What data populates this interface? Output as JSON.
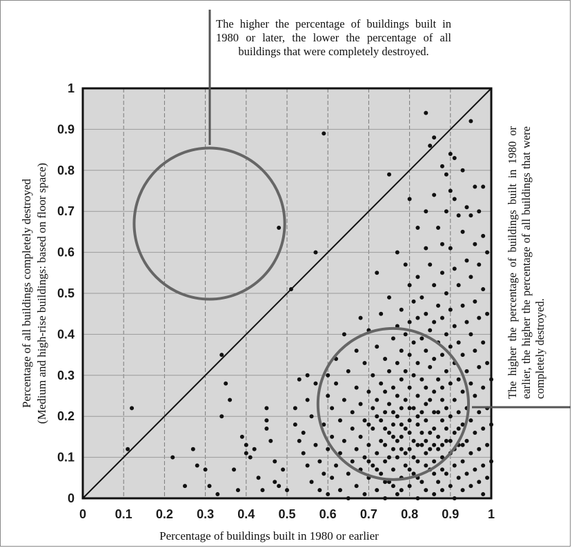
{
  "chart_data": {
    "type": "scatter",
    "xlabel": "Percentage of buildings built in 1980 or earlier",
    "ylabel_line1": "Percentage of all buildings completely destroyed",
    "ylabel_line2": "(Medium and high-rise buildings: based on floor space)",
    "xlim": [
      0,
      1
    ],
    "ylim": [
      0,
      1
    ],
    "x_ticks": [
      "0",
      "0.1",
      "0.2",
      "0.3",
      "0.4",
      "0.5",
      "0.6",
      "0.7",
      "0.8",
      "0.9",
      "1"
    ],
    "y_ticks": [
      "0",
      "0.1",
      "0.2",
      "0.3",
      "0.4",
      "0.5",
      "0.6",
      "0.7",
      "0.8",
      "0.9",
      "1"
    ],
    "grid": true,
    "reference_line": {
      "from": [
        0,
        0
      ],
      "to": [
        1,
        1
      ]
    },
    "annotation_top": "The higher the percentage of buildings built in 1980 or later, the lower the percentage of all buildings that were completely destroyed.",
    "annotation_right": "The higher the percentage of buildings built in 1980 or earlier, the higher the percentage of all buildings that were completely destroyed.",
    "highlight_circles": [
      {
        "cx": 0.31,
        "cy": 0.67,
        "r": 0.19,
        "meaning": "upper-left region"
      },
      {
        "cx": 0.76,
        "cy": 0.23,
        "r": 0.19,
        "meaning": "lower-right region"
      }
    ],
    "points": [
      [
        0.12,
        0.22
      ],
      [
        0.11,
        0.12
      ],
      [
        0.22,
        0.1
      ],
      [
        0.25,
        0.03
      ],
      [
        0.27,
        0.12
      ],
      [
        0.28,
        0.08
      ],
      [
        0.3,
        0.07
      ],
      [
        0.31,
        0.03
      ],
      [
        0.33,
        0.01
      ],
      [
        0.34,
        0.35
      ],
      [
        0.34,
        0.2
      ],
      [
        0.35,
        0.28
      ],
      [
        0.36,
        0.24
      ],
      [
        0.37,
        0.07
      ],
      [
        0.38,
        0.02
      ],
      [
        0.39,
        0.15
      ],
      [
        0.4,
        0.13
      ],
      [
        0.4,
        0.11
      ],
      [
        0.41,
        0.1
      ],
      [
        0.42,
        0.12
      ],
      [
        0.43,
        0.05
      ],
      [
        0.44,
        0.02
      ],
      [
        0.45,
        0.22
      ],
      [
        0.45,
        0.19
      ],
      [
        0.45,
        0.17
      ],
      [
        0.46,
        0.14
      ],
      [
        0.47,
        0.09
      ],
      [
        0.47,
        0.04
      ],
      [
        0.48,
        0.66
      ],
      [
        0.48,
        0.03
      ],
      [
        0.49,
        0.07
      ],
      [
        0.5,
        0.02
      ],
      [
        0.51,
        0.51
      ],
      [
        0.52,
        0.22
      ],
      [
        0.52,
        0.18
      ],
      [
        0.53,
        0.29
      ],
      [
        0.53,
        0.14
      ],
      [
        0.54,
        0.16
      ],
      [
        0.54,
        0.11
      ],
      [
        0.55,
        0.3
      ],
      [
        0.55,
        0.24
      ],
      [
        0.55,
        0.08
      ],
      [
        0.56,
        0.2
      ],
      [
        0.56,
        0.04
      ],
      [
        0.57,
        0.6
      ],
      [
        0.57,
        0.28
      ],
      [
        0.57,
        0.13
      ],
      [
        0.58,
        0.09
      ],
      [
        0.58,
        0.02
      ],
      [
        0.59,
        0.89
      ],
      [
        0.59,
        0.18
      ],
      [
        0.59,
        0.06
      ],
      [
        0.6,
        0.3
      ],
      [
        0.6,
        0.25
      ],
      [
        0.6,
        0.12
      ],
      [
        0.6,
        0.01
      ],
      [
        0.61,
        0.22
      ],
      [
        0.61,
        0.15
      ],
      [
        0.61,
        0.05
      ],
      [
        0.62,
        0.34
      ],
      [
        0.62,
        0.28
      ],
      [
        0.62,
        0.08
      ],
      [
        0.63,
        0.19
      ],
      [
        0.63,
        0.11
      ],
      [
        0.63,
        0.02
      ],
      [
        0.64,
        0.4
      ],
      [
        0.64,
        0.24
      ],
      [
        0.64,
        0.14
      ],
      [
        0.65,
        0.31
      ],
      [
        0.65,
        0.06
      ],
      [
        0.65,
        0.0
      ],
      [
        0.66,
        0.21
      ],
      [
        0.66,
        0.17
      ],
      [
        0.66,
        0.09
      ],
      [
        0.67,
        0.36
      ],
      [
        0.67,
        0.27
      ],
      [
        0.67,
        0.12
      ],
      [
        0.67,
        0.03
      ],
      [
        0.68,
        0.44
      ],
      [
        0.68,
        0.23
      ],
      [
        0.68,
        0.15
      ],
      [
        0.68,
        0.07
      ],
      [
        0.69,
        0.33
      ],
      [
        0.69,
        0.19
      ],
      [
        0.69,
        0.1
      ],
      [
        0.69,
        0.01
      ],
      [
        0.7,
        0.41
      ],
      [
        0.7,
        0.26
      ],
      [
        0.7,
        0.13
      ],
      [
        0.7,
        0.05
      ],
      [
        0.71,
        0.3
      ],
      [
        0.71,
        0.22
      ],
      [
        0.71,
        0.17
      ],
      [
        0.71,
        0.08
      ],
      [
        0.72,
        0.55
      ],
      [
        0.72,
        0.37
      ],
      [
        0.72,
        0.24
      ],
      [
        0.72,
        0.11
      ],
      [
        0.72,
        0.02
      ],
      [
        0.73,
        0.45
      ],
      [
        0.73,
        0.28
      ],
      [
        0.73,
        0.19
      ],
      [
        0.73,
        0.14
      ],
      [
        0.73,
        0.06
      ],
      [
        0.74,
        0.34
      ],
      [
        0.74,
        0.26
      ],
      [
        0.74,
        0.21
      ],
      [
        0.74,
        0.09
      ],
      [
        0.74,
        0.0
      ],
      [
        0.75,
        0.79
      ],
      [
        0.75,
        0.49
      ],
      [
        0.75,
        0.31
      ],
      [
        0.75,
        0.23
      ],
      [
        0.75,
        0.16
      ],
      [
        0.75,
        0.04
      ],
      [
        0.76,
        0.39
      ],
      [
        0.76,
        0.27
      ],
      [
        0.76,
        0.18
      ],
      [
        0.76,
        0.12
      ],
      [
        0.76,
        0.07
      ],
      [
        0.77,
        0.6
      ],
      [
        0.77,
        0.42
      ],
      [
        0.77,
        0.33
      ],
      [
        0.77,
        0.25
      ],
      [
        0.77,
        0.2
      ],
      [
        0.77,
        0.1
      ],
      [
        0.77,
        0.01
      ],
      [
        0.78,
        0.46
      ],
      [
        0.78,
        0.36
      ],
      [
        0.78,
        0.29
      ],
      [
        0.78,
        0.22
      ],
      [
        0.78,
        0.15
      ],
      [
        0.78,
        0.05
      ],
      [
        0.79,
        0.57
      ],
      [
        0.79,
        0.4
      ],
      [
        0.79,
        0.31
      ],
      [
        0.79,
        0.24
      ],
      [
        0.79,
        0.17
      ],
      [
        0.79,
        0.08
      ],
      [
        0.8,
        0.73
      ],
      [
        0.8,
        0.52
      ],
      [
        0.8,
        0.43
      ],
      [
        0.8,
        0.35
      ],
      [
        0.8,
        0.27
      ],
      [
        0.8,
        0.19
      ],
      [
        0.8,
        0.12
      ],
      [
        0.8,
        0.03
      ],
      [
        0.81,
        0.48
      ],
      [
        0.81,
        0.38
      ],
      [
        0.81,
        0.3
      ],
      [
        0.81,
        0.22
      ],
      [
        0.81,
        0.14
      ],
      [
        0.81,
        0.06
      ],
      [
        0.82,
        0.66
      ],
      [
        0.82,
        0.54
      ],
      [
        0.82,
        0.44
      ],
      [
        0.82,
        0.33
      ],
      [
        0.82,
        0.25
      ],
      [
        0.82,
        0.18
      ],
      [
        0.82,
        0.09
      ],
      [
        0.82,
        0.0
      ],
      [
        0.83,
        0.49
      ],
      [
        0.83,
        0.39
      ],
      [
        0.83,
        0.29
      ],
      [
        0.83,
        0.21
      ],
      [
        0.83,
        0.13
      ],
      [
        0.83,
        0.04
      ],
      [
        0.84,
        0.94
      ],
      [
        0.84,
        0.7
      ],
      [
        0.84,
        0.61
      ],
      [
        0.84,
        0.45
      ],
      [
        0.84,
        0.36
      ],
      [
        0.84,
        0.27
      ],
      [
        0.84,
        0.19
      ],
      [
        0.84,
        0.11
      ],
      [
        0.84,
        0.02
      ],
      [
        0.85,
        0.86
      ],
      [
        0.85,
        0.57
      ],
      [
        0.85,
        0.41
      ],
      [
        0.85,
        0.32
      ],
      [
        0.85,
        0.24
      ],
      [
        0.85,
        0.16
      ],
      [
        0.85,
        0.07
      ],
      [
        0.86,
        0.88
      ],
      [
        0.86,
        0.74
      ],
      [
        0.86,
        0.52
      ],
      [
        0.86,
        0.43
      ],
      [
        0.86,
        0.34
      ],
      [
        0.86,
        0.26
      ],
      [
        0.86,
        0.17
      ],
      [
        0.86,
        0.09
      ],
      [
        0.86,
        0.01
      ],
      [
        0.87,
        0.66
      ],
      [
        0.87,
        0.47
      ],
      [
        0.87,
        0.38
      ],
      [
        0.87,
        0.29
      ],
      [
        0.87,
        0.21
      ],
      [
        0.87,
        0.12
      ],
      [
        0.87,
        0.04
      ],
      [
        0.88,
        0.81
      ],
      [
        0.88,
        0.62
      ],
      [
        0.88,
        0.55
      ],
      [
        0.88,
        0.44
      ],
      [
        0.88,
        0.35
      ],
      [
        0.88,
        0.27
      ],
      [
        0.88,
        0.19
      ],
      [
        0.88,
        0.1
      ],
      [
        0.88,
        0.02
      ],
      [
        0.89,
        0.79
      ],
      [
        0.89,
        0.7
      ],
      [
        0.89,
        0.5
      ],
      [
        0.89,
        0.4
      ],
      [
        0.89,
        0.31
      ],
      [
        0.89,
        0.22
      ],
      [
        0.89,
        0.14
      ],
      [
        0.89,
        0.06
      ],
      [
        0.9,
        0.84
      ],
      [
        0.9,
        0.75
      ],
      [
        0.9,
        0.61
      ],
      [
        0.9,
        0.46
      ],
      [
        0.9,
        0.37
      ],
      [
        0.9,
        0.28
      ],
      [
        0.9,
        0.2
      ],
      [
        0.9,
        0.11
      ],
      [
        0.9,
        0.03
      ],
      [
        0.91,
        0.83
      ],
      [
        0.91,
        0.73
      ],
      [
        0.91,
        0.56
      ],
      [
        0.91,
        0.42
      ],
      [
        0.91,
        0.33
      ],
      [
        0.91,
        0.24
      ],
      [
        0.91,
        0.16
      ],
      [
        0.91,
        0.08
      ],
      [
        0.91,
        0.0
      ],
      [
        0.92,
        0.69
      ],
      [
        0.92,
        0.52
      ],
      [
        0.92,
        0.38
      ],
      [
        0.92,
        0.29
      ],
      [
        0.92,
        0.21
      ],
      [
        0.92,
        0.13
      ],
      [
        0.92,
        0.05
      ],
      [
        0.93,
        0.8
      ],
      [
        0.93,
        0.65
      ],
      [
        0.93,
        0.47
      ],
      [
        0.93,
        0.35
      ],
      [
        0.93,
        0.26
      ],
      [
        0.93,
        0.18
      ],
      [
        0.93,
        0.09
      ],
      [
        0.93,
        0.02
      ],
      [
        0.94,
        0.71
      ],
      [
        0.94,
        0.58
      ],
      [
        0.94,
        0.43
      ],
      [
        0.94,
        0.31
      ],
      [
        0.94,
        0.22
      ],
      [
        0.94,
        0.14
      ],
      [
        0.94,
        0.06
      ],
      [
        0.95,
        0.92
      ],
      [
        0.95,
        0.69
      ],
      [
        0.95,
        0.54
      ],
      [
        0.95,
        0.4
      ],
      [
        0.95,
        0.28
      ],
      [
        0.95,
        0.19
      ],
      [
        0.95,
        0.11
      ],
      [
        0.95,
        0.03
      ],
      [
        0.96,
        0.76
      ],
      [
        0.96,
        0.62
      ],
      [
        0.96,
        0.48
      ],
      [
        0.96,
        0.36
      ],
      [
        0.96,
        0.25
      ],
      [
        0.96,
        0.16
      ],
      [
        0.96,
        0.07
      ],
      [
        0.97,
        0.7
      ],
      [
        0.97,
        0.57
      ],
      [
        0.97,
        0.44
      ],
      [
        0.97,
        0.32
      ],
      [
        0.97,
        0.21
      ],
      [
        0.97,
        0.12
      ],
      [
        0.97,
        0.04
      ],
      [
        0.98,
        0.76
      ],
      [
        0.98,
        0.64
      ],
      [
        0.98,
        0.51
      ],
      [
        0.98,
        0.38
      ],
      [
        0.98,
        0.27
      ],
      [
        0.98,
        0.17
      ],
      [
        0.98,
        0.08
      ],
      [
        0.98,
        0.01
      ],
      [
        0.99,
        0.6
      ],
      [
        0.99,
        0.45
      ],
      [
        0.99,
        0.33
      ],
      [
        0.99,
        0.22
      ],
      [
        0.99,
        0.13
      ],
      [
        0.99,
        0.05
      ],
      [
        1.0,
        0.29
      ],
      [
        1.0,
        0.18
      ],
      [
        1.0,
        0.09
      ],
      [
        0.74,
        0.13
      ],
      [
        0.75,
        0.1
      ],
      [
        0.76,
        0.15
      ],
      [
        0.77,
        0.14
      ],
      [
        0.78,
        0.12
      ],
      [
        0.79,
        0.11
      ],
      [
        0.8,
        0.16
      ],
      [
        0.81,
        0.1
      ],
      [
        0.82,
        0.13
      ],
      [
        0.83,
        0.16
      ],
      [
        0.84,
        0.14
      ],
      [
        0.85,
        0.12
      ],
      [
        0.86,
        0.13
      ],
      [
        0.87,
        0.15
      ],
      [
        0.88,
        0.13
      ],
      [
        0.89,
        0.17
      ],
      [
        0.9,
        0.14
      ],
      [
        0.91,
        0.12
      ],
      [
        0.92,
        0.17
      ],
      [
        0.93,
        0.13
      ],
      [
        0.7,
        0.18
      ],
      [
        0.72,
        0.2
      ],
      [
        0.74,
        0.17
      ],
      [
        0.76,
        0.21
      ],
      [
        0.78,
        0.18
      ],
      [
        0.8,
        0.22
      ],
      [
        0.82,
        0.2
      ],
      [
        0.84,
        0.23
      ],
      [
        0.86,
        0.21
      ],
      [
        0.88,
        0.24
      ],
      [
        0.7,
        0.09
      ],
      [
        0.72,
        0.07
      ],
      [
        0.74,
        0.04
      ],
      [
        0.76,
        0.03
      ],
      [
        0.78,
        0.02
      ],
      [
        0.8,
        0.07
      ],
      [
        0.82,
        0.05
      ],
      [
        0.84,
        0.08
      ],
      [
        0.86,
        0.06
      ],
      [
        0.88,
        0.07
      ]
    ]
  }
}
